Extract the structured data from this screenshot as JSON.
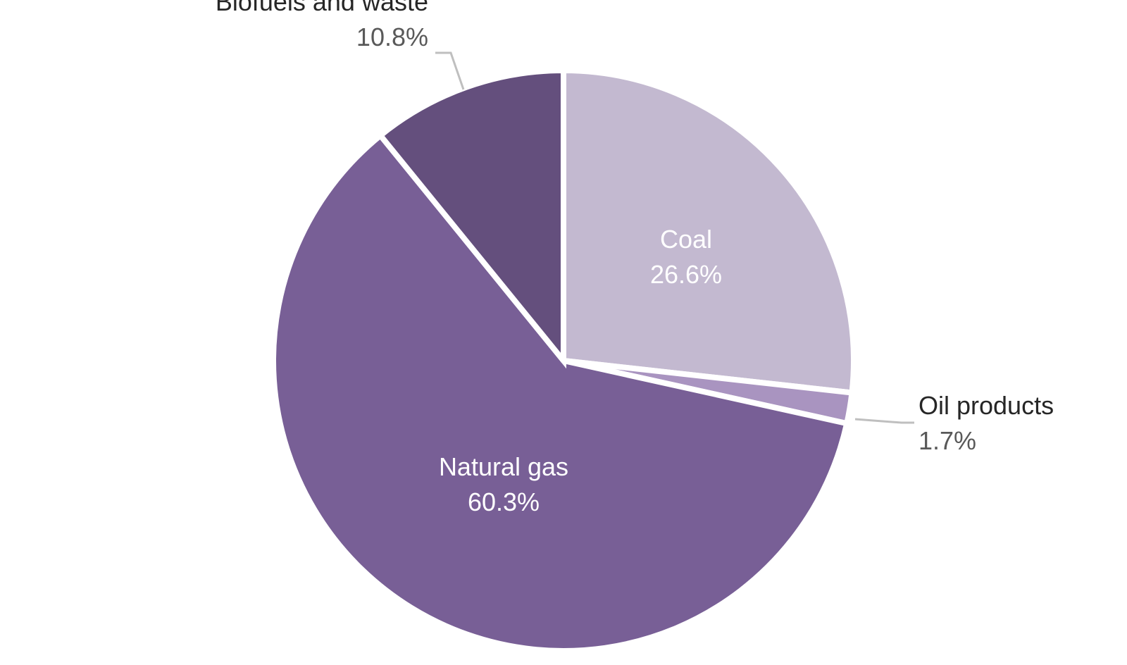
{
  "chart_data": {
    "type": "pie",
    "start_angle_deg": 0,
    "direction": "clockwise",
    "slices": [
      {
        "name": "Coal",
        "value": 26.6,
        "label": "26.6%",
        "color": "#c3b9d0",
        "label_position": "inside"
      },
      {
        "name": "Oil products",
        "value": 1.7,
        "label": "1.7%",
        "color": "#a994c0",
        "label_position": "outside"
      },
      {
        "name": "Natural gas",
        "value": 60.3,
        "label": "60.3%",
        "color": "#785f96",
        "label_position": "inside"
      },
      {
        "name": "Biofuels and waste",
        "value": 10.8,
        "label": "10.8%",
        "color": "#644f7d",
        "label_position": "outside"
      }
    ],
    "legend": "none"
  }
}
